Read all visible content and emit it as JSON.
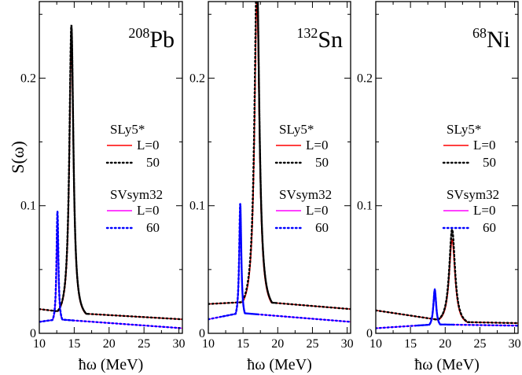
{
  "chart_data": {
    "type": "line",
    "ylabel": "S(ω)",
    "xlabel": "ħω (MeV)",
    "ylim": [
      0,
      0.26
    ],
    "xlim": [
      10,
      30.5
    ],
    "xticks": [
      "10",
      "15",
      "20",
      "25",
      "30"
    ],
    "yticks": [
      "0",
      "0.1",
      "0.2"
    ],
    "colors": {
      "SLy5_L0": "#ff0000",
      "SLy5_L50": "#000000",
      "SVsym_L0": "#ff00ff",
      "SVsym_L60": "#0000ff"
    },
    "legend": {
      "group1_title": "SLy5*",
      "group1_entries": [
        "L=0",
        "50"
      ],
      "group2_title": "SVsym32",
      "group2_entries": [
        "L=0",
        "60"
      ],
      "placement": "center-right"
    },
    "panels": [
      {
        "nucleus_mass": "208",
        "nucleus_symbol": "Pb",
        "series": [
          {
            "key": "SLy5_L0",
            "peak": 14.6,
            "height": 0.216,
            "width": 0.35,
            "base_left": 0.019,
            "base_mid": 0.016,
            "base_right": 0.011
          },
          {
            "key": "SLy5_L50",
            "peak": 14.6,
            "height": 0.232,
            "width": 0.35,
            "base_left": 0.019,
            "base_mid": 0.016,
            "base_right": 0.011
          },
          {
            "key": "SVsym_L0",
            "peak": 12.6,
            "height": 0.08,
            "width": 0.16,
            "base_left": 0.009,
            "base_mid": 0.011,
            "base_right": 0.004
          },
          {
            "key": "SVsym_L60",
            "peak": 12.6,
            "height": 0.089,
            "width": 0.16,
            "base_left": 0.009,
            "base_mid": 0.011,
            "base_right": 0.004
          }
        ]
      },
      {
        "nucleus_mass": "132",
        "nucleus_symbol": "Sn",
        "series": [
          {
            "key": "SLy5_L0",
            "peak": 17.0,
            "height": 0.245,
            "width": 0.42,
            "base_left": 0.023,
            "base_mid": 0.025,
            "base_right": 0.019
          },
          {
            "key": "SLy5_L50",
            "peak": 17.0,
            "height": 0.27,
            "width": 0.42,
            "base_left": 0.023,
            "base_mid": 0.025,
            "base_right": 0.019
          },
          {
            "key": "SVsym_L0",
            "peak": 14.6,
            "height": 0.085,
            "width": 0.18,
            "base_left": 0.011,
            "base_mid": 0.016,
            "base_right": 0.009
          },
          {
            "key": "SVsym_L60",
            "peak": 14.6,
            "height": 0.092,
            "width": 0.18,
            "base_left": 0.011,
            "base_mid": 0.016,
            "base_right": 0.009
          }
        ]
      },
      {
        "nucleus_mass": "68",
        "nucleus_symbol": "Ni",
        "series": [
          {
            "key": "SLy5_L0",
            "peak": 21.0,
            "height": 0.068,
            "width": 0.5,
            "base_left": 0.018,
            "base_mid": 0.009,
            "base_right": 0.008
          },
          {
            "key": "SLy5_L50",
            "peak": 21.0,
            "height": 0.076,
            "width": 0.5,
            "base_left": 0.018,
            "base_mid": 0.009,
            "base_right": 0.008
          },
          {
            "key": "SVsym_L0",
            "peak": 18.5,
            "height": 0.027,
            "width": 0.25,
            "base_left": 0.004,
            "base_mid": 0.007,
            "base_right": 0.006
          },
          {
            "key": "SVsym_L60",
            "peak": 18.5,
            "height": 0.03,
            "width": 0.25,
            "base_left": 0.004,
            "base_mid": 0.007,
            "base_right": 0.006
          }
        ]
      }
    ]
  }
}
